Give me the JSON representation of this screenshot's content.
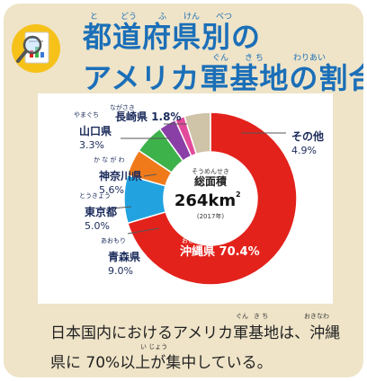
{
  "title": {
    "line1": "都道府県別の",
    "line2": "アメリカ軍基地の割合",
    "ruby1": [
      "と",
      "どう",
      "ふ",
      "けん",
      "べつ"
    ],
    "ruby2_gun": "ぐん",
    "ruby2_kichi": "き ち",
    "ruby2_wariai": "わりあい"
  },
  "chart_data": {
    "type": "pie",
    "center": {
      "ruby": "そうめんせき",
      "label": "総面積",
      "value": "264km",
      "superscript": "2",
      "year": "(2017年)"
    },
    "slices": [
      {
        "name": "沖縄県",
        "ruby": "おきなわ",
        "value": 70.4,
        "label_value": "70.4%",
        "color": "#e3221c"
      },
      {
        "name": "青森県",
        "ruby": "あおもり",
        "value": 9.0,
        "label_value": "9.0%",
        "color": "#22a3e0"
      },
      {
        "name": "東京都",
        "ruby": "とうきょう",
        "value": 5.0,
        "label_value": "5.0%",
        "color": "#f07a1a"
      },
      {
        "name": "神奈川県",
        "ruby": "か な が わ",
        "value": 5.6,
        "label_value": "5.6%",
        "color": "#3db24a"
      },
      {
        "name": "山口県",
        "ruby": "やまぐち",
        "value": 3.3,
        "label_value": "3.3%",
        "color": "#8a3fa6"
      },
      {
        "name": "長崎県",
        "ruby": "ながさき",
        "value": 1.8,
        "label_value": "1.8%",
        "color": "#e24a9a"
      },
      {
        "name": "その他",
        "ruby": "",
        "value": 4.9,
        "label_value": "4.9%",
        "color": "#cfc3a8"
      }
    ]
  },
  "footer": {
    "line1": "日本国内におけるアメリカ軍基地は、沖縄",
    "line2": "県に 70%以上が集中している。",
    "ruby_gun": "ぐん",
    "ruby_kichi": "き ち",
    "ruby_okinawa": "おきなわ",
    "ruby_ijou": "い じょう"
  },
  "colors": {
    "title": "#1b6fb8",
    "background": "#efe4c8"
  },
  "icon": "magnifier-report-icon"
}
